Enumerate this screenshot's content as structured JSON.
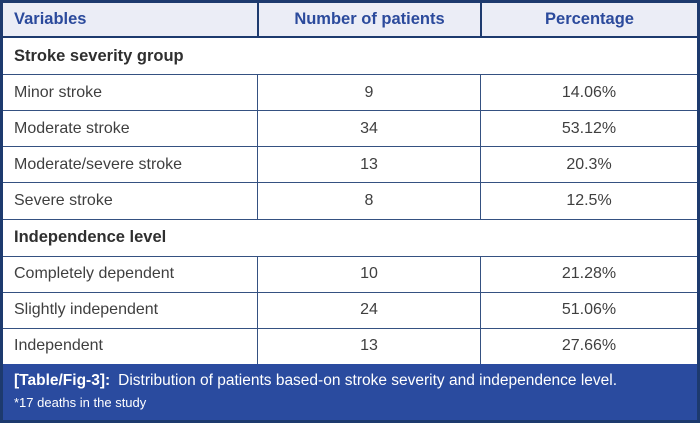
{
  "table": {
    "columns": [
      "Variables",
      "Number of patients",
      "Percentage"
    ],
    "sections": [
      {
        "header": "Stroke severity group",
        "rows": [
          [
            "Minor stroke",
            "9",
            "14.06%"
          ],
          [
            "Moderate stroke",
            "34",
            "53.12%"
          ],
          [
            "Moderate/severe stroke",
            "13",
            "20.3%"
          ],
          [
            "Severe stroke",
            "8",
            "12.5%"
          ]
        ]
      },
      {
        "header": "Independence level",
        "rows": [
          [
            "Completely dependent",
            "10",
            "21.28%"
          ],
          [
            "Slightly independent",
            "24",
            "51.06%"
          ],
          [
            "Independent",
            "13",
            "27.66%"
          ]
        ]
      }
    ],
    "caption": {
      "label": "[Table/Fig-3]:",
      "text": "Distribution of patients based-on stroke severity and independence level.",
      "footnote": "*17 deaths in the study"
    }
  },
  "colors": {
    "outer_border": "#1d3a6e",
    "header_bg": "#ebedf6",
    "header_text": "#2b4a9c",
    "grid_line": "#355181",
    "body_text": "#3f3f3f",
    "section_text": "#2f2f2f",
    "caption_bg": "#2a4b9f",
    "caption_text": "#ffffff"
  }
}
